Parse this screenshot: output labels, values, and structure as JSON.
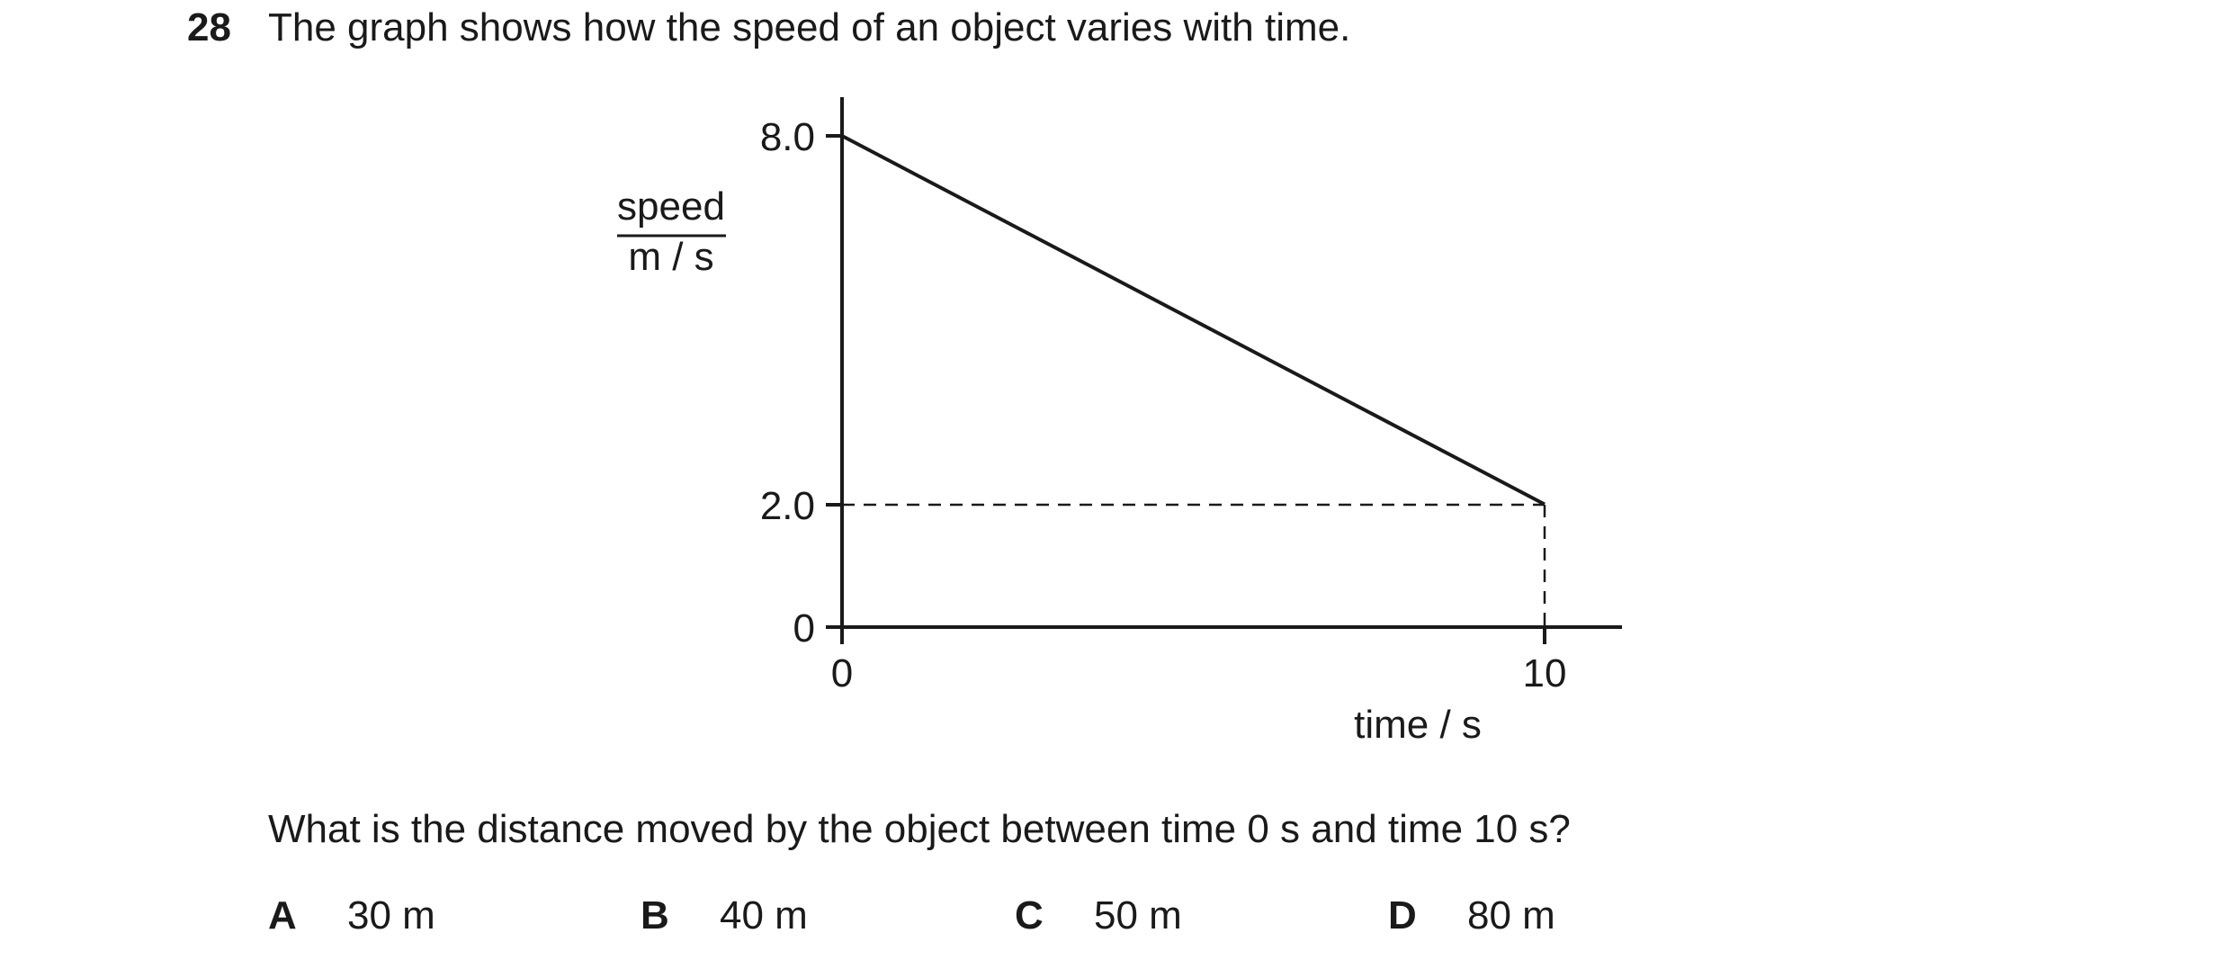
{
  "question": {
    "number": "28",
    "text": "The graph shows how the speed of an object varies with time.",
    "prompt": "What is the distance moved by the object between time 0 s and time 10 s?",
    "options": [
      {
        "letter": "A",
        "value": "30 m"
      },
      {
        "letter": "B",
        "value": "40 m"
      },
      {
        "letter": "C",
        "value": "50 m"
      },
      {
        "letter": "D",
        "value": "80 m"
      }
    ]
  },
  "chart_data": {
    "type": "line",
    "title": "",
    "ylabel_top": "speed",
    "ylabel_bottom": "m / s",
    "xlabel": "time / s",
    "x_ticks": [
      "0",
      "10"
    ],
    "y_ticks": [
      "0",
      "2.0",
      "8.0"
    ],
    "xlim": [
      0,
      11.1
    ],
    "ylim": [
      0,
      8.6
    ],
    "series": [
      {
        "x": [
          0,
          10
        ],
        "y": [
          8.0,
          2.0
        ]
      }
    ],
    "guides": {
      "x": 10,
      "y": 2.0
    },
    "grid": false,
    "colors": {
      "line": "#1a1a1a"
    }
  }
}
